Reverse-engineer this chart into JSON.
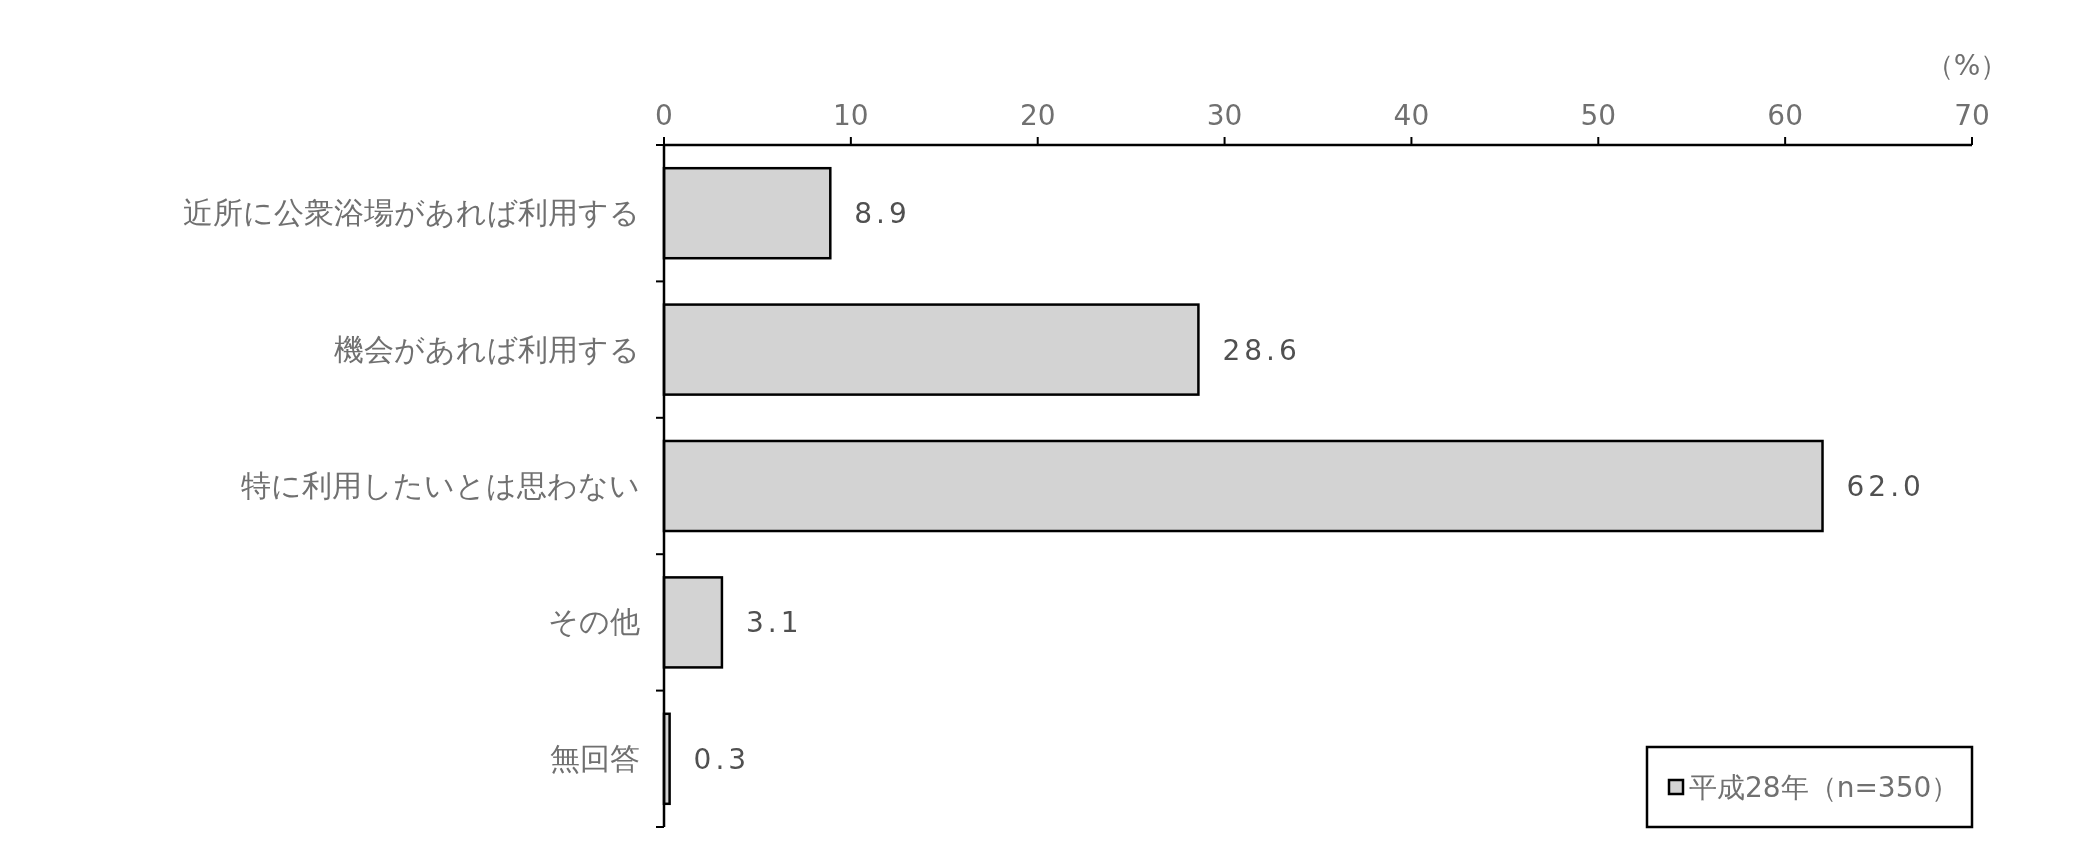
{
  "chart_data": {
    "type": "bar",
    "orientation": "horizontal",
    "xlabel": "（%）",
    "categories": [
      "近所に公衆浴場があれば利用する",
      "機会があれば利用する",
      "特に利用したいとは思わない",
      "その他",
      "無回答"
    ],
    "series": [
      {
        "name": "平成28年（n=350）",
        "color": "#d3d3d3",
        "values": [
          8.9,
          28.6,
          62.0,
          3.1,
          0.3
        ]
      }
    ],
    "value_labels": [
      "8.9",
      "28.6",
      "62.0",
      "3.1",
      "0.3"
    ],
    "xlim": [
      0,
      70
    ],
    "xticks": [
      0,
      10,
      20,
      30,
      40,
      50,
      60,
      70
    ],
    "grid": false,
    "legend": "bottom right"
  }
}
